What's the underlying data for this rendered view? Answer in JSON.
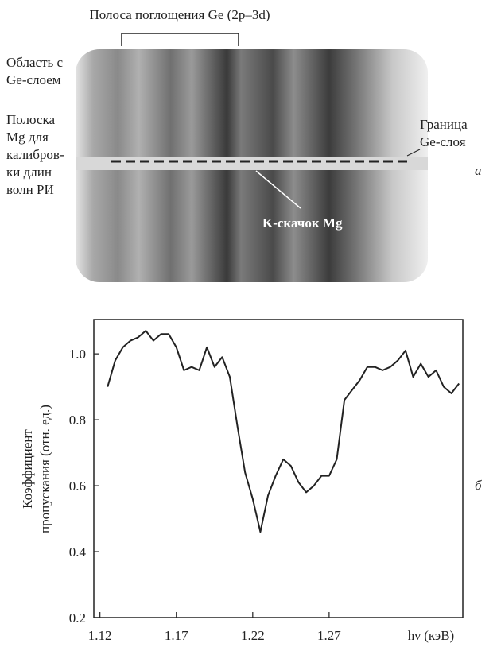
{
  "figure_a": {
    "band_label": "Полоса поглощения Ge (2p–3d)",
    "region_label": [
      "Область с",
      "Ge-слоем"
    ],
    "strip_label": [
      "Полоска",
      "Mg для",
      "калибров-",
      "ки длин",
      "волн РИ"
    ],
    "boundary_label": [
      "Граница",
      "Ge-слоя"
    ],
    "edge_label": "K-скачок Mg",
    "panel_label": "а"
  },
  "chart_data": {
    "type": "line",
    "panel_label": "б",
    "ylabel": [
      "Коэффициент",
      "пропускания (отн. ед.)"
    ],
    "xlabel": "hν (кэВ)",
    "x": [
      1.125,
      1.13,
      1.135,
      1.14,
      1.145,
      1.15,
      1.155,
      1.16,
      1.165,
      1.17,
      1.175,
      1.18,
      1.185,
      1.19,
      1.195,
      1.2,
      1.205,
      1.21,
      1.215,
      1.22,
      1.225,
      1.23,
      1.235,
      1.24,
      1.245,
      1.25,
      1.255,
      1.26,
      1.265,
      1.27,
      1.275,
      1.28,
      1.285,
      1.29,
      1.295,
      1.3,
      1.305,
      1.31,
      1.315,
      1.32,
      1.325,
      1.33,
      1.335,
      1.34,
      1.345,
      1.35,
      1.355
    ],
    "values": [
      0.9,
      0.98,
      1.02,
      1.04,
      1.05,
      1.07,
      1.04,
      1.06,
      1.06,
      1.02,
      0.95,
      0.96,
      0.95,
      1.02,
      0.96,
      0.99,
      0.93,
      0.78,
      0.64,
      0.56,
      0.46,
      0.57,
      0.63,
      0.68,
      0.66,
      0.61,
      0.58,
      0.6,
      0.63,
      0.63,
      0.68,
      0.86,
      0.89,
      0.92,
      0.96,
      0.96,
      0.95,
      0.96,
      0.98,
      1.01,
      0.93,
      0.97,
      0.93,
      0.95,
      0.9,
      0.88,
      0.91
    ],
    "color": "#222222",
    "xlim": [
      1.116,
      1.3575
    ],
    "xticks": [
      1.12,
      1.17,
      1.22,
      1.27
    ],
    "ylim": [
      0.2,
      1.104
    ],
    "yticks": [
      0.2,
      0.4,
      0.6,
      0.8,
      {
        "value": 1,
        "label": "1.0"
      }
    ]
  }
}
